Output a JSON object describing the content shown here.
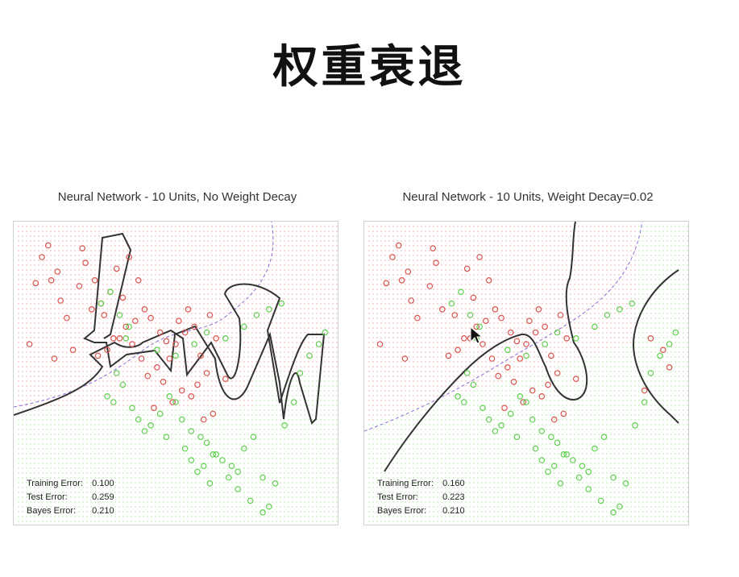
{
  "slide": {
    "title": "权重衰退"
  },
  "chart_data": [
    {
      "type": "scatter",
      "title": "Neural Network - 10 Units, No Weight Decay",
      "xlabel": "",
      "ylabel": "",
      "xlim": [
        0,
        1
      ],
      "ylim": [
        0,
        1
      ],
      "grid": false,
      "series": [
        {
          "values": "red",
          "x": [
            0.09,
            0.07,
            0.12,
            0.1,
            0.03,
            0.11,
            0.13,
            0.2,
            0.21,
            0.19,
            0.23,
            0.27,
            0.31,
            0.35,
            0.38,
            0.33,
            0.37,
            0.32,
            0.28,
            0.3,
            0.25,
            0.34,
            0.4,
            0.42,
            0.45,
            0.47,
            0.5,
            0.53,
            0.51,
            0.48,
            0.44,
            0.46,
            0.39,
            0.36,
            0.41,
            0.52,
            0.55,
            0.57,
            0.6,
            0.58,
            0.63,
            0.56,
            0.61,
            0.54,
            0.49,
            0.43,
            0.66,
            0.59,
            0.62,
            0.05,
            0.15,
            0.24,
            0.29,
            0.17,
            0.26
          ],
          "y": [
            0.94,
            0.9,
            0.85,
            0.82,
            0.6,
            0.55,
            0.75,
            0.93,
            0.88,
            0.8,
            0.72,
            0.7,
            0.86,
            0.9,
            0.82,
            0.76,
            0.68,
            0.62,
            0.58,
            0.62,
            0.56,
            0.66,
            0.72,
            0.69,
            0.64,
            0.61,
            0.6,
            0.64,
            0.68,
            0.55,
            0.52,
            0.47,
            0.55,
            0.6,
            0.49,
            0.44,
            0.42,
            0.46,
            0.5,
            0.56,
            0.62,
            0.66,
            0.7,
            0.72,
            0.4,
            0.38,
            0.48,
            0.34,
            0.36,
            0.81,
            0.69,
            0.82,
            0.78,
            0.58,
            0.74
          ]
        },
        {
          "values": "green",
          "x": [
            0.28,
            0.3,
            0.31,
            0.33,
            0.36,
            0.38,
            0.4,
            0.42,
            0.45,
            0.48,
            0.5,
            0.52,
            0.55,
            0.58,
            0.6,
            0.62,
            0.65,
            0.68,
            0.7,
            0.72,
            0.75,
            0.78,
            0.8,
            0.82,
            0.85,
            0.88,
            0.9,
            0.93,
            0.96,
            0.98,
            0.34,
            0.44,
            0.5,
            0.56,
            0.6,
            0.66,
            0.72,
            0.76,
            0.8,
            0.84,
            0.55,
            0.59,
            0.63,
            0.67,
            0.7,
            0.74,
            0.78,
            0.47,
            0.53,
            0.57,
            0.61,
            0.26,
            0.29,
            0.32,
            0.35
          ],
          "y": [
            0.42,
            0.4,
            0.5,
            0.46,
            0.38,
            0.34,
            0.3,
            0.32,
            0.36,
            0.42,
            0.4,
            0.34,
            0.3,
            0.28,
            0.26,
            0.22,
            0.2,
            0.18,
            0.16,
            0.24,
            0.28,
            0.14,
            0.04,
            0.12,
            0.32,
            0.4,
            0.5,
            0.56,
            0.6,
            0.64,
            0.62,
            0.58,
            0.56,
            0.6,
            0.64,
            0.62,
            0.66,
            0.7,
            0.72,
            0.74,
            0.2,
            0.18,
            0.22,
            0.14,
            0.1,
            0.06,
            0.02,
            0.28,
            0.24,
            0.16,
            0.12,
            0.74,
            0.78,
            0.7,
            0.66
          ]
        }
      ],
      "annotations": [
        {
          "label": "Training Error:",
          "value": "0.100"
        },
        {
          "label": "Test Error:",
          "value": "0.259"
        },
        {
          "label": "Bayes Error:",
          "value": "0.210"
        }
      ]
    },
    {
      "type": "scatter",
      "title": "Neural Network - 10 Units, Weight Decay=0.02",
      "xlabel": "",
      "ylabel": "",
      "xlim": [
        0,
        1
      ],
      "ylim": [
        0,
        1
      ],
      "grid": false,
      "series": [
        {
          "values": "red",
          "x": [
            0.09,
            0.07,
            0.12,
            0.1,
            0.03,
            0.11,
            0.13,
            0.2,
            0.21,
            0.19,
            0.23,
            0.27,
            0.31,
            0.35,
            0.38,
            0.33,
            0.37,
            0.32,
            0.28,
            0.3,
            0.25,
            0.34,
            0.4,
            0.42,
            0.45,
            0.47,
            0.5,
            0.53,
            0.51,
            0.48,
            0.44,
            0.46,
            0.39,
            0.36,
            0.41,
            0.52,
            0.55,
            0.57,
            0.6,
            0.58,
            0.63,
            0.56,
            0.61,
            0.54,
            0.49,
            0.43,
            0.66,
            0.59,
            0.62,
            0.05,
            0.15,
            0.9,
            0.94,
            0.96,
            0.88
          ],
          "y": [
            0.94,
            0.9,
            0.85,
            0.82,
            0.6,
            0.55,
            0.75,
            0.93,
            0.88,
            0.8,
            0.72,
            0.7,
            0.86,
            0.9,
            0.82,
            0.76,
            0.68,
            0.62,
            0.58,
            0.62,
            0.56,
            0.66,
            0.72,
            0.69,
            0.64,
            0.61,
            0.6,
            0.64,
            0.68,
            0.55,
            0.52,
            0.47,
            0.55,
            0.6,
            0.49,
            0.44,
            0.42,
            0.46,
            0.5,
            0.56,
            0.62,
            0.66,
            0.7,
            0.72,
            0.4,
            0.38,
            0.48,
            0.34,
            0.36,
            0.81,
            0.69,
            0.62,
            0.58,
            0.52,
            0.44
          ]
        },
        {
          "values": "green",
          "x": [
            0.28,
            0.3,
            0.31,
            0.33,
            0.36,
            0.38,
            0.4,
            0.42,
            0.45,
            0.48,
            0.5,
            0.52,
            0.55,
            0.58,
            0.6,
            0.62,
            0.65,
            0.68,
            0.7,
            0.72,
            0.75,
            0.78,
            0.8,
            0.82,
            0.85,
            0.88,
            0.9,
            0.93,
            0.96,
            0.98,
            0.34,
            0.44,
            0.5,
            0.56,
            0.6,
            0.66,
            0.72,
            0.76,
            0.8,
            0.84,
            0.55,
            0.59,
            0.63,
            0.67,
            0.7,
            0.74,
            0.78,
            0.47,
            0.53,
            0.57,
            0.61,
            0.26,
            0.29,
            0.32,
            0.35
          ],
          "y": [
            0.42,
            0.4,
            0.5,
            0.46,
            0.38,
            0.34,
            0.3,
            0.32,
            0.36,
            0.42,
            0.4,
            0.34,
            0.3,
            0.28,
            0.26,
            0.22,
            0.2,
            0.18,
            0.16,
            0.24,
            0.28,
            0.14,
            0.04,
            0.12,
            0.32,
            0.4,
            0.5,
            0.56,
            0.6,
            0.64,
            0.62,
            0.58,
            0.56,
            0.6,
            0.64,
            0.62,
            0.66,
            0.7,
            0.72,
            0.74,
            0.2,
            0.18,
            0.22,
            0.14,
            0.1,
            0.06,
            0.02,
            0.28,
            0.24,
            0.16,
            0.12,
            0.74,
            0.78,
            0.7,
            0.66
          ]
        }
      ],
      "annotations": [
        {
          "label": "Training Error:",
          "value": "0.160"
        },
        {
          "label": "Test Error:",
          "value": "0.223"
        },
        {
          "label": "Bayes Error:",
          "value": "0.210"
        }
      ]
    }
  ],
  "colors": {
    "red_class": "#d9534f",
    "green_class": "#5fcf4f",
    "red_region_dot": "#e8a0a0",
    "green_region_dot": "#a8e09a",
    "boundary": "#333333",
    "bayes_boundary": "#8a6fd6"
  },
  "cursor_icon": "arrow-cursor-icon"
}
